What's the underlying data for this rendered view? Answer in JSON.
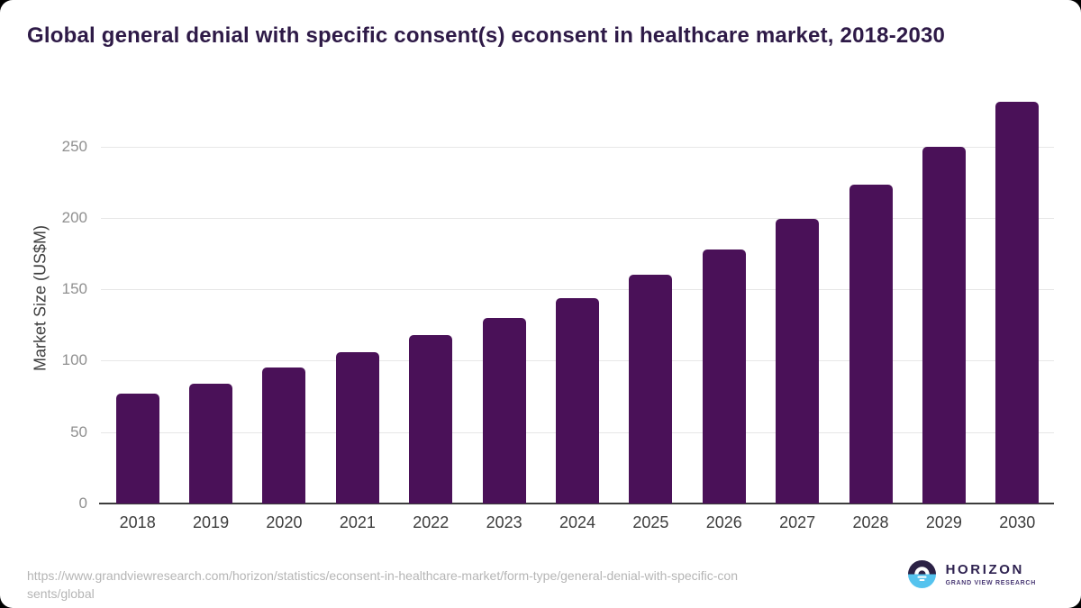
{
  "chart_data": {
    "type": "bar",
    "title": "Global general denial with specific consent(s) econsent in healthcare market, 2018-2030",
    "categories": [
      "2018",
      "2019",
      "2020",
      "2021",
      "2022",
      "2023",
      "2024",
      "2025",
      "2026",
      "2027",
      "2028",
      "2029",
      "2030"
    ],
    "values": [
      77,
      84,
      95,
      106,
      118,
      130,
      144,
      160,
      178,
      199,
      223,
      250,
      281
    ],
    "xlabel": "",
    "ylabel": "Market Size (US$M)",
    "yticks": [
      0,
      50,
      100,
      150,
      200,
      250
    ],
    "ylim": [
      0,
      290
    ],
    "grid": "horizontal-light",
    "legend": "none",
    "bar_color": "#4a1158"
  },
  "footer": {
    "source_url_lines": [
      "https://www.grandviewresearch.com/horizon/statistics/econsent-in-healthcare-market/form-type/general-denial-with-specific-con",
      "sents/global"
    ],
    "logo": {
      "name": "HORIZON",
      "subtitle": "GRAND VIEW RESEARCH"
    }
  },
  "colors": {
    "bar": "#4a1158",
    "title_text": "#2e1a47",
    "axis_line": "#3c3c3c",
    "gridline": "#e7e7e7",
    "x_label": "#3d3d3d",
    "y_tick": "#8f8f8f",
    "axis_title_text": "#3d3d3d",
    "source_text": "#b5b5b5",
    "logo_dark_purple": "#2b2145",
    "logo_light_blue": "#55c3ee",
    "logo_name_text": "#2e2250",
    "logo_subtitle_text": "#4a3a75"
  }
}
